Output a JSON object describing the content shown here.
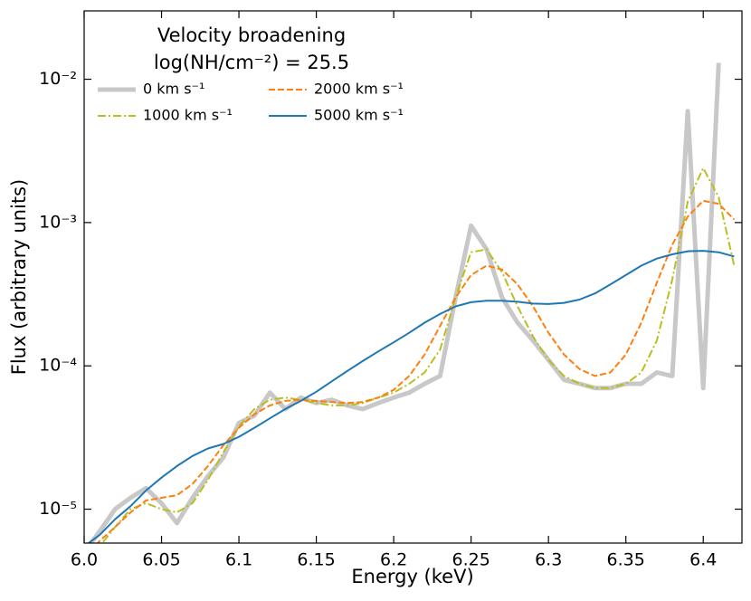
{
  "chart_data": {
    "type": "line",
    "xlabel": "Energy (keV)",
    "ylabel": "Flux (arbitrary units)",
    "legend_title": [
      "Velocity broadening",
      "log(NH/cm⁻²) = 25.5"
    ],
    "legend_loc": "upper left",
    "yscale": "log",
    "xlim": [
      6.0,
      6.425
    ],
    "ylim": [
      5.8e-06,
      0.03
    ],
    "xticks": [
      {
        "value": 6,
        "label": "6.0"
      },
      6.05,
      {
        "value": 6.1,
        "label": "6.1"
      },
      6.15,
      {
        "value": 6.2,
        "label": "6.2"
      },
      6.25,
      {
        "value": 6.3,
        "label": "6.3"
      },
      6.35,
      {
        "value": 6.4,
        "label": "6.4"
      }
    ],
    "yticks": [
      {
        "value": 1e-05,
        "label": "10⁻⁵"
      },
      {
        "value": 0.0001,
        "label": "10⁻⁴"
      },
      {
        "value": 0.001,
        "label": "10⁻³"
      },
      {
        "value": 0.01,
        "label": "10⁻²"
      }
    ],
    "x": [
      6.0,
      6.01,
      6.02,
      6.03,
      6.04,
      6.05,
      6.06,
      6.07,
      6.08,
      6.09,
      6.1,
      6.11,
      6.12,
      6.13,
      6.14,
      6.15,
      6.16,
      6.17,
      6.18,
      6.19,
      6.2,
      6.21,
      6.22,
      6.23,
      6.24,
      6.25,
      6.26,
      6.27,
      6.28,
      6.29,
      6.3,
      6.31,
      6.32,
      6.33,
      6.34,
      6.35,
      6.36,
      6.37,
      6.38,
      6.39,
      6.4,
      6.41,
      6.42
    ],
    "series": [
      {
        "name": "0 km s⁻¹",
        "color": "#c8c8c8",
        "linestyle": "solid",
        "linewidth": 5,
        "values": [
          5e-06,
          7e-06,
          1e-05,
          1.2e-05,
          1.4e-05,
          1.1e-05,
          8e-06,
          1.2e-05,
          1.7e-05,
          2.3e-05,
          4e-05,
          4.5e-05,
          6.5e-05,
          5e-05,
          6e-05,
          5.5e-05,
          5.8e-05,
          5.3e-05,
          5e-05,
          5.5e-05,
          6e-05,
          6.5e-05,
          7.5e-05,
          8.5e-05,
          0.0003,
          0.00095,
          0.00065,
          0.0003,
          0.0002,
          0.00015,
          0.00011,
          8e-05,
          7.5e-05,
          7e-05,
          7e-05,
          7.5e-05,
          7.5e-05,
          9e-05,
          8.5e-05,
          0.006,
          7e-05,
          0.013,
          null
        ]
      },
      {
        "name": "1000 km s⁻¹",
        "color": "#bcbd22",
        "linestyle": "dashdot",
        "linewidth": 2,
        "values": [
          4e-06,
          5.5e-06,
          7.5e-06,
          1e-05,
          1.1e-05,
          1e-05,
          9.5e-06,
          1.1e-05,
          1.6e-05,
          2.5e-05,
          3.8e-05,
          5e-05,
          5.8e-05,
          6e-05,
          5.8e-05,
          5.5e-05,
          5.3e-05,
          5.3e-05,
          5.5e-05,
          6e-05,
          6.5e-05,
          7.5e-05,
          9e-05,
          0.00013,
          0.0003,
          0.00062,
          0.00065,
          0.00045,
          0.00026,
          0.00016,
          0.00011,
          8.5e-05,
          7.5e-05,
          7e-05,
          7e-05,
          7.5e-05,
          9e-05,
          0.00015,
          0.0004,
          0.0014,
          0.0024,
          0.0015,
          0.0005
        ]
      },
      {
        "name": "2000 km s⁻¹",
        "color": "#ff7f0e",
        "linestyle": "dashed",
        "linewidth": 2,
        "values": [
          4.5e-06,
          6e-06,
          7.5e-06,
          9.5e-06,
          1.15e-05,
          1.2e-05,
          1.25e-05,
          1.5e-05,
          2e-05,
          2.8e-05,
          3.7e-05,
          4.6e-05,
          5.3e-05,
          5.7e-05,
          5.8e-05,
          5.7e-05,
          5.6e-05,
          5.5e-05,
          5.6e-05,
          6e-05,
          6.8e-05,
          8.5e-05,
          0.00012,
          0.00019,
          0.0003,
          0.00043,
          0.0005,
          0.00047,
          0.00037,
          0.00026,
          0.00017,
          0.00012,
          9.5e-05,
          8.5e-05,
          9e-05,
          0.00012,
          0.0002,
          0.00038,
          0.0007,
          0.0011,
          0.00142,
          0.00135,
          0.00105
        ]
      },
      {
        "name": "5000 km s⁻¹",
        "color": "#1f77b4",
        "linestyle": "solid",
        "linewidth": 2,
        "values": [
          5.5e-06,
          6.6e-06,
          8.5e-06,
          1.05e-05,
          1.35e-05,
          1.66e-05,
          2e-05,
          2.35e-05,
          2.65e-05,
          2.85e-05,
          3.2e-05,
          3.7e-05,
          4.3e-05,
          5e-05,
          5.7e-05,
          6.6e-05,
          7.8e-05,
          9.2e-05,
          0.000108,
          0.000126,
          0.000146,
          0.00017,
          0.0002,
          0.00023,
          0.00026,
          0.000278,
          0.000285,
          0.000285,
          0.00028,
          0.000272,
          0.00027,
          0.000275,
          0.00029,
          0.00032,
          0.00037,
          0.00043,
          0.0005,
          0.00056,
          0.0006,
          0.00063,
          0.000635,
          0.00062,
          0.00058
        ]
      }
    ]
  }
}
